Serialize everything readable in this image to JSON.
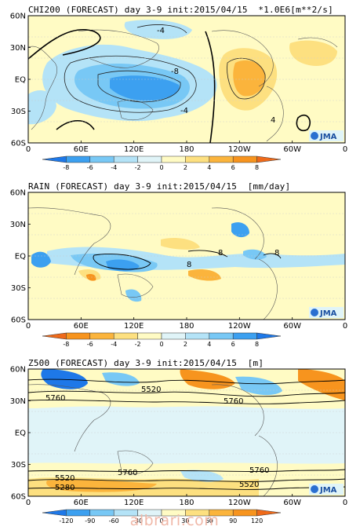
{
  "axis": {
    "lat_labels": [
      "60N",
      "30N",
      "EQ",
      "30S",
      "60S"
    ],
    "lon_labels": [
      "0",
      "60E",
      "120E",
      "180",
      "120W",
      "60W",
      "0"
    ]
  },
  "logo": "JMA",
  "panels": [
    {
      "id": "chi200",
      "title": "CHI200 (FORECAST) day 3-9 init:2015/04/15  *1.0E6[m**2/s]",
      "colorbar": {
        "ticks": [
          "-8",
          "-6",
          "-4",
          "-2",
          "0",
          "2",
          "4",
          "6",
          "8"
        ],
        "colors": [
          "#1e78e8",
          "#3ca0f0",
          "#78c8f5",
          "#b4e3f7",
          "#e0f4f8",
          "#fffbc4",
          "#fde080",
          "#fbb43c",
          "#f7941e",
          "#ef6a1a"
        ]
      },
      "contour_labels": [
        "-4",
        "-8",
        "-4",
        "4"
      ]
    },
    {
      "id": "rain",
      "title": "RAIN (FORECAST) day 3-9 init:2015/04/15  [mm/day]",
      "colorbar": {
        "ticks": [
          "-8",
          "-6",
          "-4",
          "-2",
          "0",
          "2",
          "4",
          "6",
          "8"
        ],
        "colors": [
          "#ef6a1a",
          "#f7941e",
          "#fbb43c",
          "#fde080",
          "#fffbc4",
          "#e0f4f8",
          "#b4e3f7",
          "#78c8f5",
          "#3ca0f0",
          "#1e78e8"
        ]
      },
      "contour_labels": [
        "8",
        "8",
        "8"
      ]
    },
    {
      "id": "z500",
      "title": "Z500 (FORECAST) day 3-9 init:2015/04/15  [m]",
      "colorbar": {
        "ticks": [
          "-120",
          "-90",
          "-60",
          "-30",
          "0",
          "30",
          "60",
          "90",
          "120"
        ],
        "colors": [
          "#1e78e8",
          "#3ca0f0",
          "#78c8f5",
          "#b4e3f7",
          "#e0f4f8",
          "#fffbc4",
          "#fde080",
          "#fbb43c",
          "#f7941e",
          "#ef6a1a"
        ]
      },
      "contour_labels": [
        "5520",
        "5760",
        "5760",
        "5760",
        "5520",
        "5760",
        "5520",
        "5280"
      ]
    }
  ],
  "watermark": "albrari.com"
}
